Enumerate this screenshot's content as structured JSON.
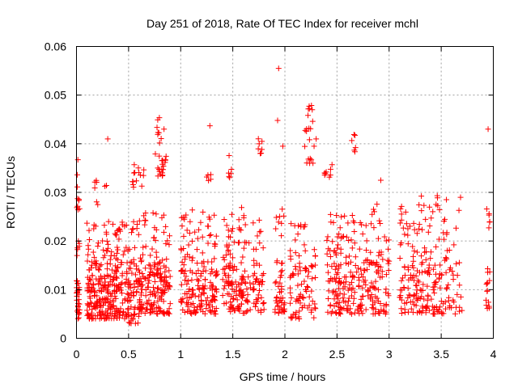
{
  "chart_data": {
    "type": "scatter",
    "title": "Day 251 of 2018, Rate Of TEC Index for receiver mchl",
    "xlabel": "GPS time / hours",
    "ylabel": "ROTI / TECUs",
    "xlim": [
      0,
      4
    ],
    "ylim": [
      0,
      0.06
    ],
    "x_ticks": [
      0,
      0.5,
      1,
      1.5,
      2,
      2.5,
      3,
      3.5,
      4
    ],
    "x_tick_labels": [
      "0",
      "0.5",
      "1",
      "1.5",
      "2",
      "2.5",
      "3",
      "3.5",
      "4"
    ],
    "y_ticks": [
      0,
      0.01,
      0.02,
      0.03,
      0.04,
      0.05,
      0.06
    ],
    "y_tick_labels": [
      "0",
      "0.01",
      "0.02",
      "0.03",
      "0.04",
      "0.05",
      "0.06"
    ],
    "grid": true,
    "marker": "+",
    "marker_color": "#ff0000",
    "series": [
      {
        "name": "ROTI",
        "clusters": [
          {
            "x": [
              0.0,
              0.03
            ],
            "y": [
              0.004,
              0.012
            ],
            "n": 30
          },
          {
            "x": [
              0.0,
              0.03
            ],
            "y": [
              0.017,
              0.02
            ],
            "n": 6
          },
          {
            "x": [
              0.0,
              0.03
            ],
            "y": [
              0.026,
              0.037
            ],
            "n": 10
          },
          {
            "x": [
              0.1,
              0.3
            ],
            "y": [
              0.004,
              0.013
            ],
            "n": 120
          },
          {
            "x": [
              0.1,
              0.3
            ],
            "y": [
              0.014,
              0.024
            ],
            "n": 40
          },
          {
            "x": [
              0.17,
              0.3
            ],
            "y": [
              0.027,
              0.033
            ],
            "n": 8
          },
          {
            "x": [
              0.3,
              0.5
            ],
            "y": [
              0.004,
              0.014
            ],
            "n": 100
          },
          {
            "x": [
              0.3,
              0.5
            ],
            "y": [
              0.014,
              0.025
            ],
            "n": 40
          },
          {
            "x": [
              0.5,
              0.6
            ],
            "y": [
              0.003,
              0.012
            ],
            "n": 40
          },
          {
            "x": [
              0.5,
              0.6
            ],
            "y": [
              0.013,
              0.024
            ],
            "n": 20
          },
          {
            "x": [
              0.52,
              0.65
            ],
            "y": [
              0.031,
              0.036
            ],
            "n": 14
          },
          {
            "x": [
              0.6,
              0.9
            ],
            "y": [
              0.005,
              0.015
            ],
            "n": 140
          },
          {
            "x": [
              0.6,
              0.9
            ],
            "y": [
              0.015,
              0.026
            ],
            "n": 40
          },
          {
            "x": [
              0.75,
              0.87
            ],
            "y": [
              0.033,
              0.038
            ],
            "n": 20
          },
          {
            "x": [
              0.76,
              0.82
            ],
            "y": [
              0.04,
              0.048
            ],
            "n": 8
          },
          {
            "x": [
              1.0,
              1.35
            ],
            "y": [
              0.005,
              0.015
            ],
            "n": 130
          },
          {
            "x": [
              1.0,
              1.35
            ],
            "y": [
              0.015,
              0.027
            ],
            "n": 50
          },
          {
            "x": [
              1.25,
              1.3
            ],
            "y": [
              0.032,
              0.034
            ],
            "n": 5
          },
          {
            "x": [
              1.4,
              1.8
            ],
            "y": [
              0.005,
              0.015
            ],
            "n": 130
          },
          {
            "x": [
              1.4,
              1.8
            ],
            "y": [
              0.015,
              0.027
            ],
            "n": 50
          },
          {
            "x": [
              1.45,
              1.5
            ],
            "y": [
              0.033,
              0.039
            ],
            "n": 6
          },
          {
            "x": [
              1.72,
              1.78
            ],
            "y": [
              0.038,
              0.042
            ],
            "n": 6
          },
          {
            "x": [
              1.9,
              2.0
            ],
            "y": [
              0.005,
              0.016
            ],
            "n": 40
          },
          {
            "x": [
              1.9,
              2.0
            ],
            "y": [
              0.02,
              0.027
            ],
            "n": 8
          },
          {
            "x": [
              2.05,
              2.3
            ],
            "y": [
              0.004,
              0.016
            ],
            "n": 70
          },
          {
            "x": [
              2.05,
              2.3
            ],
            "y": [
              0.016,
              0.024
            ],
            "n": 20
          },
          {
            "x": [
              2.18,
              2.27
            ],
            "y": [
              0.036,
              0.048
            ],
            "n": 20
          },
          {
            "x": [
              2.4,
              2.8
            ],
            "y": [
              0.005,
              0.016
            ],
            "n": 130
          },
          {
            "x": [
              2.4,
              2.8
            ],
            "y": [
              0.016,
              0.026
            ],
            "n": 50
          },
          {
            "x": [
              2.38,
              2.46
            ],
            "y": [
              0.033,
              0.037
            ],
            "n": 8
          },
          {
            "x": [
              2.62,
              2.68
            ],
            "y": [
              0.038,
              0.042
            ],
            "n": 6
          },
          {
            "x": [
              2.8,
              3.0
            ],
            "y": [
              0.005,
              0.016
            ],
            "n": 60
          },
          {
            "x": [
              2.8,
              3.0
            ],
            "y": [
              0.016,
              0.028
            ],
            "n": 20
          },
          {
            "x": [
              3.1,
              3.5
            ],
            "y": [
              0.005,
              0.016
            ],
            "n": 120
          },
          {
            "x": [
              3.1,
              3.5
            ],
            "y": [
              0.016,
              0.03
            ],
            "n": 50
          },
          {
            "x": [
              3.5,
              3.7
            ],
            "y": [
              0.005,
              0.017
            ],
            "n": 40
          },
          {
            "x": [
              3.5,
              3.7
            ],
            "y": [
              0.018,
              0.03
            ],
            "n": 12
          },
          {
            "x": [
              3.93,
              3.97
            ],
            "y": [
              0.006,
              0.015
            ],
            "n": 15
          },
          {
            "x": [
              3.93,
              3.97
            ],
            "y": [
              0.022,
              0.028
            ],
            "n": 6
          }
        ],
        "points": [
          [
            1.94,
            0.0555
          ],
          [
            1.93,
            0.0448
          ],
          [
            2.3,
            0.041
          ],
          [
            0.3,
            0.041
          ],
          [
            1.78,
            0.0405
          ],
          [
            1.98,
            0.0395
          ],
          [
            2.28,
            0.0395
          ],
          [
            0.84,
            0.043
          ],
          [
            3.95,
            0.043
          ],
          [
            1.28,
            0.0437
          ],
          [
            2.92,
            0.0325
          ],
          [
            3.55,
            0.0285
          ]
        ]
      }
    ]
  }
}
